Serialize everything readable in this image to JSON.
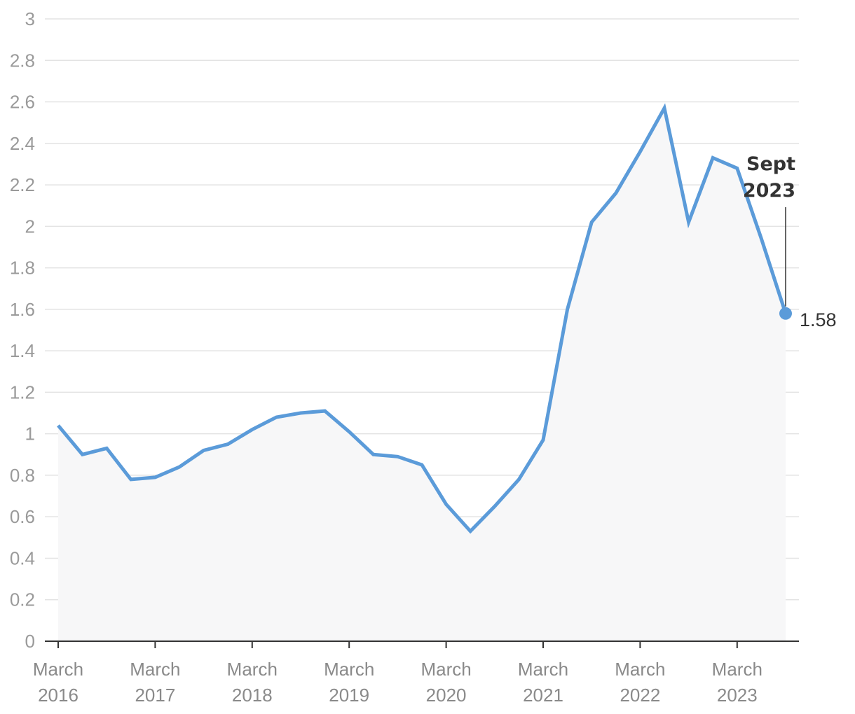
{
  "chart_data": {
    "type": "area",
    "title": "",
    "xlabel": "",
    "ylabel": "",
    "ylim": [
      0,
      3
    ],
    "y_ticks": [
      "0",
      "0.2",
      "0.4",
      "0.6",
      "0.8",
      "1",
      "1.2",
      "1.4",
      "1.6",
      "1.8",
      "2",
      "2.2",
      "2.4",
      "2.6",
      "2.8",
      "3"
    ],
    "x_ticks": [
      {
        "line1": "March",
        "line2": "2016"
      },
      {
        "line1": "March",
        "line2": "2017"
      },
      {
        "line1": "March",
        "line2": "2018"
      },
      {
        "line1": "March",
        "line2": "2019"
      },
      {
        "line1": "March",
        "line2": "2020"
      },
      {
        "line1": "March",
        "line2": "2021"
      },
      {
        "line1": "March",
        "line2": "2022"
      },
      {
        "line1": "March",
        "line2": "2023"
      }
    ],
    "grid": true,
    "series": [
      {
        "color": "#5b9bd9",
        "fill": "#f7f7f8",
        "x": [
          "2016-03",
          "2016-06",
          "2016-09",
          "2016-12",
          "2017-03",
          "2017-06",
          "2017-09",
          "2017-12",
          "2018-03",
          "2018-06",
          "2018-09",
          "2018-12",
          "2019-03",
          "2019-06",
          "2019-09",
          "2019-12",
          "2020-03",
          "2020-06",
          "2020-09",
          "2020-12",
          "2021-03",
          "2021-06",
          "2021-09",
          "2021-12",
          "2022-03",
          "2022-06",
          "2022-09",
          "2022-12",
          "2023-03",
          "2023-06",
          "2023-09"
        ],
        "values": [
          1.04,
          0.9,
          0.93,
          0.78,
          0.79,
          0.84,
          0.92,
          0.95,
          1.02,
          1.08,
          1.1,
          1.11,
          1.01,
          0.9,
          0.89,
          0.85,
          0.66,
          0.53,
          0.65,
          0.78,
          0.97,
          1.6,
          2.02,
          2.16,
          2.36,
          2.57,
          2.02,
          2.33,
          2.28,
          1.94,
          1.58
        ]
      }
    ],
    "annotation": {
      "label_line1": "Sept",
      "label_line2": "2023",
      "value_label": "1.58",
      "x": "2023-09",
      "value": 1.58
    }
  }
}
